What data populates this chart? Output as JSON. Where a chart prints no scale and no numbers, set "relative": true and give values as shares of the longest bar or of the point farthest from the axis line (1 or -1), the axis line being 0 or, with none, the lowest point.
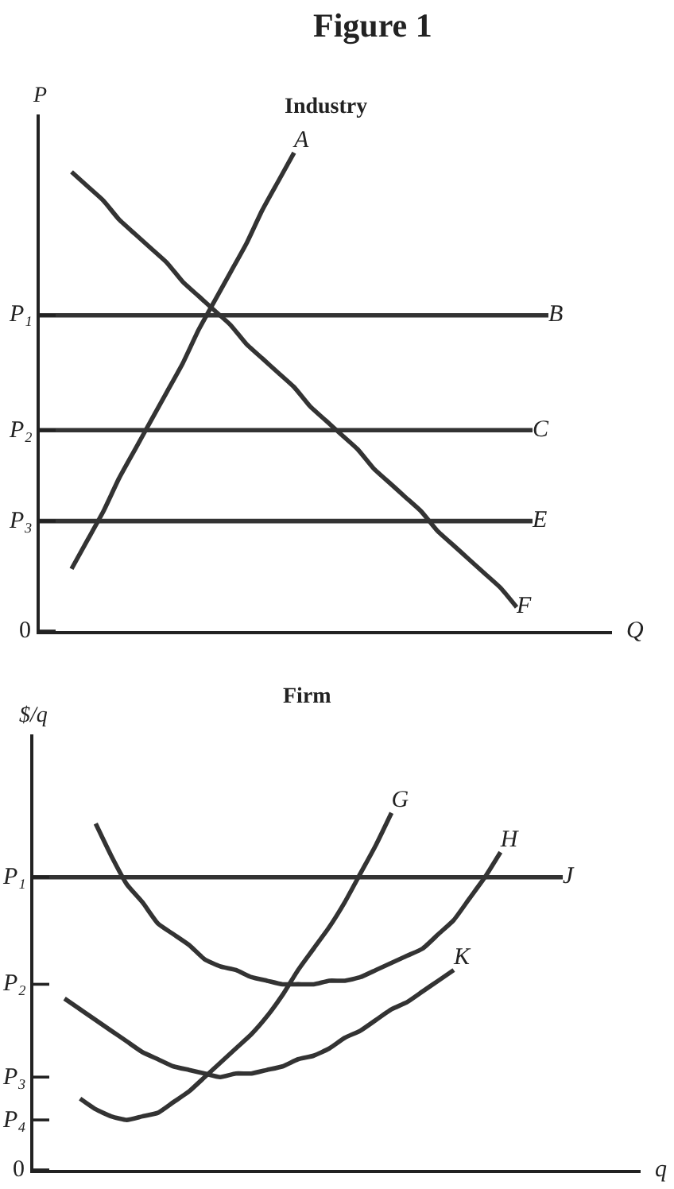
{
  "chart_data": [
    {
      "type": "line",
      "title": "Industry",
      "xlabel": "Q",
      "ylabel": "P",
      "relative": true,
      "annotations": [
        "Figure 1"
      ],
      "ref_lines": [
        {
          "axis": "y",
          "value": 0,
          "label": "0"
        },
        {
          "axis": "y",
          "value": 0.23,
          "label": "P₃"
        },
        {
          "axis": "y",
          "value": 0.42,
          "label": "P₂"
        },
        {
          "axis": "y",
          "value": 0.66,
          "label": "P₁"
        }
      ],
      "categories": [
        null,
        null,
        null,
        null,
        null,
        null,
        null,
        null,
        null,
        null,
        null,
        null,
        null,
        null,
        null,
        null,
        null,
        null,
        null,
        null,
        null,
        null,
        null,
        null,
        null,
        null,
        null,
        null,
        null,
        null,
        null,
        null,
        null,
        null,
        null,
        null,
        null
      ],
      "series": [
        {
          "name": "A",
          "color": "#333333",
          "values": [
            null,
            null,
            0.13,
            0.19,
            0.25,
            0.32,
            0.38,
            0.44,
            0.5,
            0.56,
            0.63,
            0.69,
            0.75,
            0.81,
            0.88,
            0.94,
            1.0,
            null,
            null,
            null,
            null,
            null,
            null,
            null,
            null,
            null,
            null,
            null,
            null,
            null,
            null,
            null,
            null,
            null,
            null,
            null,
            null
          ]
        },
        {
          "name": "B",
          "color": "#333333",
          "values": [
            0.66,
            0.66,
            0.66,
            0.66,
            0.66,
            0.66,
            0.66,
            0.66,
            0.66,
            0.66,
            0.66,
            0.66,
            0.66,
            0.66,
            0.66,
            0.66,
            0.66,
            0.66,
            0.66,
            0.66,
            0.66,
            0.66,
            0.66,
            0.66,
            0.66,
            0.66,
            0.66,
            0.66,
            0.66,
            0.66,
            0.66,
            0.66,
            0.66,
            null,
            null,
            null,
            null
          ]
        },
        {
          "name": "C",
          "color": "#333333",
          "values": [
            0.42,
            0.42,
            0.42,
            0.42,
            0.42,
            0.42,
            0.42,
            0.42,
            0.42,
            0.42,
            0.42,
            0.42,
            0.42,
            0.42,
            0.42,
            0.42,
            0.42,
            0.42,
            0.42,
            0.42,
            0.42,
            0.42,
            0.42,
            0.42,
            0.42,
            0.42,
            0.42,
            0.42,
            0.42,
            0.42,
            0.42,
            0.42,
            null,
            null,
            null,
            null,
            null
          ]
        },
        {
          "name": "E",
          "color": "#333333",
          "values": [
            0.23,
            0.23,
            0.23,
            0.23,
            0.23,
            0.23,
            0.23,
            0.23,
            0.23,
            0.23,
            0.23,
            0.23,
            0.23,
            0.23,
            0.23,
            0.23,
            0.23,
            0.23,
            0.23,
            0.23,
            0.23,
            0.23,
            0.23,
            0.23,
            0.23,
            0.23,
            0.23,
            0.23,
            0.23,
            0.23,
            0.23,
            0.23,
            null,
            null,
            null,
            null,
            null
          ]
        },
        {
          "name": "F",
          "color": "#333333",
          "values": [
            null,
            null,
            0.96,
            0.93,
            0.9,
            0.86,
            0.83,
            0.8,
            0.77,
            0.73,
            0.7,
            0.67,
            0.64,
            0.6,
            0.57,
            0.54,
            0.51,
            0.47,
            0.44,
            0.41,
            0.38,
            0.34,
            0.31,
            0.28,
            0.25,
            0.21,
            0.18,
            0.15,
            0.12,
            0.09,
            0.05,
            null,
            null,
            null,
            null,
            null,
            null
          ]
        }
      ]
    },
    {
      "type": "line",
      "title": "Firm",
      "xlabel": "q",
      "ylabel": "$/q",
      "relative": true,
      "ref_lines": [
        {
          "axis": "y",
          "value": 0,
          "label": "0"
        },
        {
          "axis": "y",
          "value": 0.14,
          "label": "P₄"
        },
        {
          "axis": "y",
          "value": 0.26,
          "label": "P₃"
        },
        {
          "axis": "y",
          "value": 0.52,
          "label": "P₂"
        },
        {
          "axis": "y",
          "value": 0.82,
          "label": "P₁"
        }
      ],
      "categories": [
        null,
        null,
        null,
        null,
        null,
        null,
        null,
        null,
        null,
        null,
        null,
        null,
        null,
        null,
        null,
        null,
        null,
        null,
        null,
        null,
        null,
        null,
        null,
        null,
        null,
        null,
        null,
        null,
        null,
        null,
        null,
        null,
        null,
        null,
        null,
        null,
        null,
        null,
        null,
        null
      ],
      "series": [
        {
          "name": "G",
          "color": "#333333",
          "values": [
            null,
            null,
            null,
            0.2,
            0.17,
            0.15,
            0.14,
            0.15,
            0.16,
            0.19,
            0.22,
            0.26,
            0.3,
            0.34,
            0.38,
            0.43,
            0.49,
            0.56,
            0.62,
            0.68,
            0.75,
            0.83,
            0.91,
            1.0,
            null,
            null,
            null,
            null,
            null,
            null,
            null,
            null,
            null,
            null,
            null,
            null,
            null,
            null,
            null,
            null
          ]
        },
        {
          "name": "H",
          "color": "#333333",
          "values": [
            null,
            null,
            null,
            null,
            0.97,
            0.88,
            0.8,
            0.75,
            0.69,
            0.66,
            0.63,
            0.59,
            0.57,
            0.56,
            0.54,
            0.53,
            0.52,
            0.52,
            0.52,
            0.53,
            0.53,
            0.54,
            0.56,
            0.58,
            0.6,
            0.62,
            0.66,
            0.7,
            0.76,
            0.82,
            0.89,
            null,
            null,
            null,
            null,
            null,
            null,
            null,
            null,
            null
          ]
        },
        {
          "name": "J",
          "color": "#333333",
          "values": [
            0.82,
            0.82,
            0.82,
            0.82,
            0.82,
            0.82,
            0.82,
            0.82,
            0.82,
            0.82,
            0.82,
            0.82,
            0.82,
            0.82,
            0.82,
            0.82,
            0.82,
            0.82,
            0.82,
            0.82,
            0.82,
            0.82,
            0.82,
            0.82,
            0.82,
            0.82,
            0.82,
            0.82,
            0.82,
            0.82,
            0.82,
            0.82,
            0.82,
            0.82,
            0.82,
            null,
            null,
            null,
            null,
            null
          ]
        },
        {
          "name": "K",
          "color": "#333333",
          "values": [
            null,
            null,
            0.48,
            0.45,
            0.42,
            0.39,
            0.36,
            0.33,
            0.31,
            0.29,
            0.28,
            0.27,
            0.26,
            0.27,
            0.27,
            0.28,
            0.29,
            0.31,
            0.32,
            0.34,
            0.37,
            0.39,
            0.42,
            0.45,
            0.47,
            0.5,
            0.53,
            0.56,
            null,
            null,
            null,
            null,
            null,
            null,
            null,
            null,
            null,
            null,
            null,
            null
          ]
        }
      ]
    }
  ]
}
